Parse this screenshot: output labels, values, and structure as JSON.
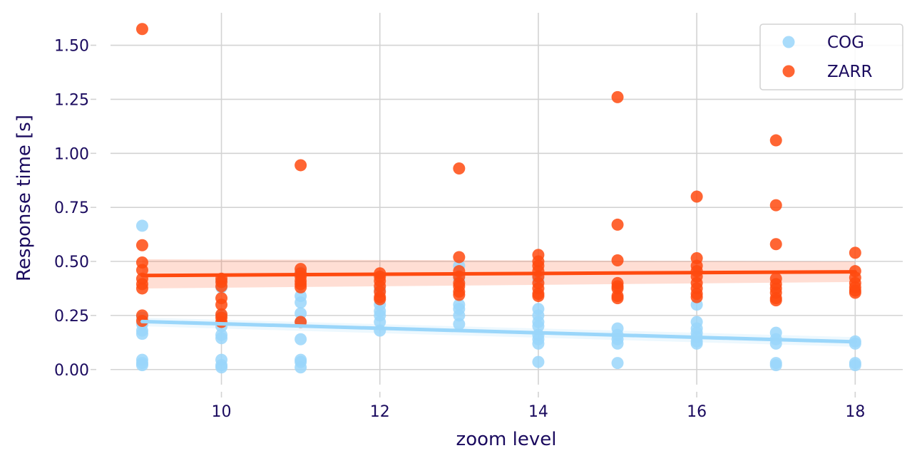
{
  "chart_data": {
    "type": "scatter",
    "title": "",
    "xlabel": "zoom level",
    "ylabel": "Response time [s]",
    "xlim": [
      8.6,
      18.6
    ],
    "ylim": [
      -0.07,
      1.65
    ],
    "x_ticks": [
      10,
      12,
      14,
      16,
      18
    ],
    "x_tick_labels": [
      "10",
      "12",
      "14",
      "16",
      "18"
    ],
    "y_ticks": [
      0,
      0.25,
      0.5,
      0.75,
      1.0,
      1.25,
      1.5
    ],
    "y_tick_labels": [
      "0.00",
      "0.25",
      "0.50",
      "0.75",
      "1.00",
      "1.25",
      "1.50"
    ],
    "grid": true,
    "legend_position": "top-right",
    "series": [
      {
        "name": "COG",
        "color": "#9ad6fa",
        "points": [
          [
            9,
            0.665
          ],
          [
            9,
            0.24
          ],
          [
            9,
            0.21
          ],
          [
            9,
            0.18
          ],
          [
            9,
            0.165
          ],
          [
            9,
            0.045
          ],
          [
            9,
            0.03
          ],
          [
            9,
            0.02
          ],
          [
            10,
            0.41
          ],
          [
            10,
            0.38
          ],
          [
            10,
            0.25
          ],
          [
            10,
            0.2
          ],
          [
            10,
            0.16
          ],
          [
            10,
            0.145
          ],
          [
            10,
            0.045
          ],
          [
            10,
            0.02
          ],
          [
            10,
            0.01
          ],
          [
            11,
            0.45
          ],
          [
            11,
            0.34
          ],
          [
            11,
            0.31
          ],
          [
            11,
            0.26
          ],
          [
            11,
            0.22
          ],
          [
            11,
            0.14
          ],
          [
            11,
            0.045
          ],
          [
            11,
            0.035
          ],
          [
            11,
            0.01
          ],
          [
            12,
            0.37
          ],
          [
            12,
            0.3
          ],
          [
            12,
            0.27
          ],
          [
            12,
            0.25
          ],
          [
            12,
            0.22
          ],
          [
            12,
            0.18
          ],
          [
            13,
            0.48
          ],
          [
            13,
            0.42
          ],
          [
            13,
            0.3
          ],
          [
            13,
            0.28
          ],
          [
            13,
            0.25
          ],
          [
            13,
            0.21
          ],
          [
            14,
            0.42
          ],
          [
            14,
            0.28
          ],
          [
            14,
            0.25
          ],
          [
            14,
            0.22
          ],
          [
            14,
            0.2
          ],
          [
            14,
            0.16
          ],
          [
            14,
            0.14
          ],
          [
            14,
            0.12
          ],
          [
            14,
            0.035
          ],
          [
            15,
            0.19
          ],
          [
            15,
            0.16
          ],
          [
            15,
            0.14
          ],
          [
            15,
            0.12
          ],
          [
            15,
            0.03
          ],
          [
            16,
            0.3
          ],
          [
            16,
            0.22
          ],
          [
            16,
            0.19
          ],
          [
            16,
            0.17
          ],
          [
            16,
            0.15
          ],
          [
            16,
            0.13
          ],
          [
            16,
            0.12
          ],
          [
            17,
            0.17
          ],
          [
            17,
            0.14
          ],
          [
            17,
            0.12
          ],
          [
            17,
            0.03
          ],
          [
            17,
            0.02
          ],
          [
            18,
            0.13
          ],
          [
            18,
            0.12
          ],
          [
            18,
            0.03
          ],
          [
            18,
            0.02
          ]
        ],
        "fit_line": [
          [
            9,
            0.222
          ],
          [
            18,
            0.128
          ]
        ],
        "ci_band": {
          "x": [
            9,
            18
          ],
          "upper": [
            0.24,
            0.15
          ],
          "lower": [
            0.2,
            0.105
          ]
        }
      },
      {
        "name": "ZARR",
        "color": "#ff4a0f",
        "points": [
          [
            9,
            1.575
          ],
          [
            9,
            0.575
          ],
          [
            9,
            0.495
          ],
          [
            9,
            0.46
          ],
          [
            9,
            0.42
          ],
          [
            9,
            0.395
          ],
          [
            9,
            0.375
          ],
          [
            9,
            0.25
          ],
          [
            9,
            0.225
          ],
          [
            10,
            0.42
          ],
          [
            10,
            0.405
          ],
          [
            10,
            0.385
          ],
          [
            10,
            0.33
          ],
          [
            10,
            0.3
          ],
          [
            10,
            0.255
          ],
          [
            10,
            0.24
          ],
          [
            10,
            0.22
          ],
          [
            11,
            0.945
          ],
          [
            11,
            0.465
          ],
          [
            11,
            0.445
          ],
          [
            11,
            0.43
          ],
          [
            11,
            0.41
          ],
          [
            11,
            0.395
          ],
          [
            11,
            0.38
          ],
          [
            11,
            0.22
          ],
          [
            12,
            0.445
          ],
          [
            12,
            0.43
          ],
          [
            12,
            0.41
          ],
          [
            12,
            0.385
          ],
          [
            12,
            0.36
          ],
          [
            12,
            0.335
          ],
          [
            12,
            0.325
          ],
          [
            13,
            0.93
          ],
          [
            13,
            0.52
          ],
          [
            13,
            0.455
          ],
          [
            13,
            0.43
          ],
          [
            13,
            0.4
          ],
          [
            13,
            0.385
          ],
          [
            13,
            0.36
          ],
          [
            13,
            0.345
          ],
          [
            14,
            0.53
          ],
          [
            14,
            0.5
          ],
          [
            14,
            0.48
          ],
          [
            14,
            0.455
          ],
          [
            14,
            0.43
          ],
          [
            14,
            0.4
          ],
          [
            14,
            0.375
          ],
          [
            14,
            0.35
          ],
          [
            14,
            0.34
          ],
          [
            15,
            1.26
          ],
          [
            15,
            0.67
          ],
          [
            15,
            0.505
          ],
          [
            15,
            0.4
          ],
          [
            15,
            0.385
          ],
          [
            15,
            0.375
          ],
          [
            15,
            0.34
          ],
          [
            15,
            0.33
          ],
          [
            16,
            0.8
          ],
          [
            16,
            0.515
          ],
          [
            16,
            0.48
          ],
          [
            16,
            0.455
          ],
          [
            16,
            0.43
          ],
          [
            16,
            0.4
          ],
          [
            16,
            0.375
          ],
          [
            16,
            0.35
          ],
          [
            16,
            0.335
          ],
          [
            17,
            1.06
          ],
          [
            17,
            0.76
          ],
          [
            17,
            0.58
          ],
          [
            17,
            0.42
          ],
          [
            17,
            0.395
          ],
          [
            17,
            0.375
          ],
          [
            17,
            0.355
          ],
          [
            17,
            0.33
          ],
          [
            17,
            0.32
          ],
          [
            18,
            0.54
          ],
          [
            18,
            0.455
          ],
          [
            18,
            0.425
          ],
          [
            18,
            0.4
          ],
          [
            18,
            0.38
          ],
          [
            18,
            0.365
          ],
          [
            18,
            0.355
          ]
        ],
        "fit_line": [
          [
            9,
            0.435
          ],
          [
            18,
            0.452
          ]
        ],
        "ci_band": {
          "x": [
            9,
            18
          ],
          "upper": [
            0.51,
            0.5
          ],
          "lower": [
            0.375,
            0.405
          ]
        }
      }
    ]
  }
}
